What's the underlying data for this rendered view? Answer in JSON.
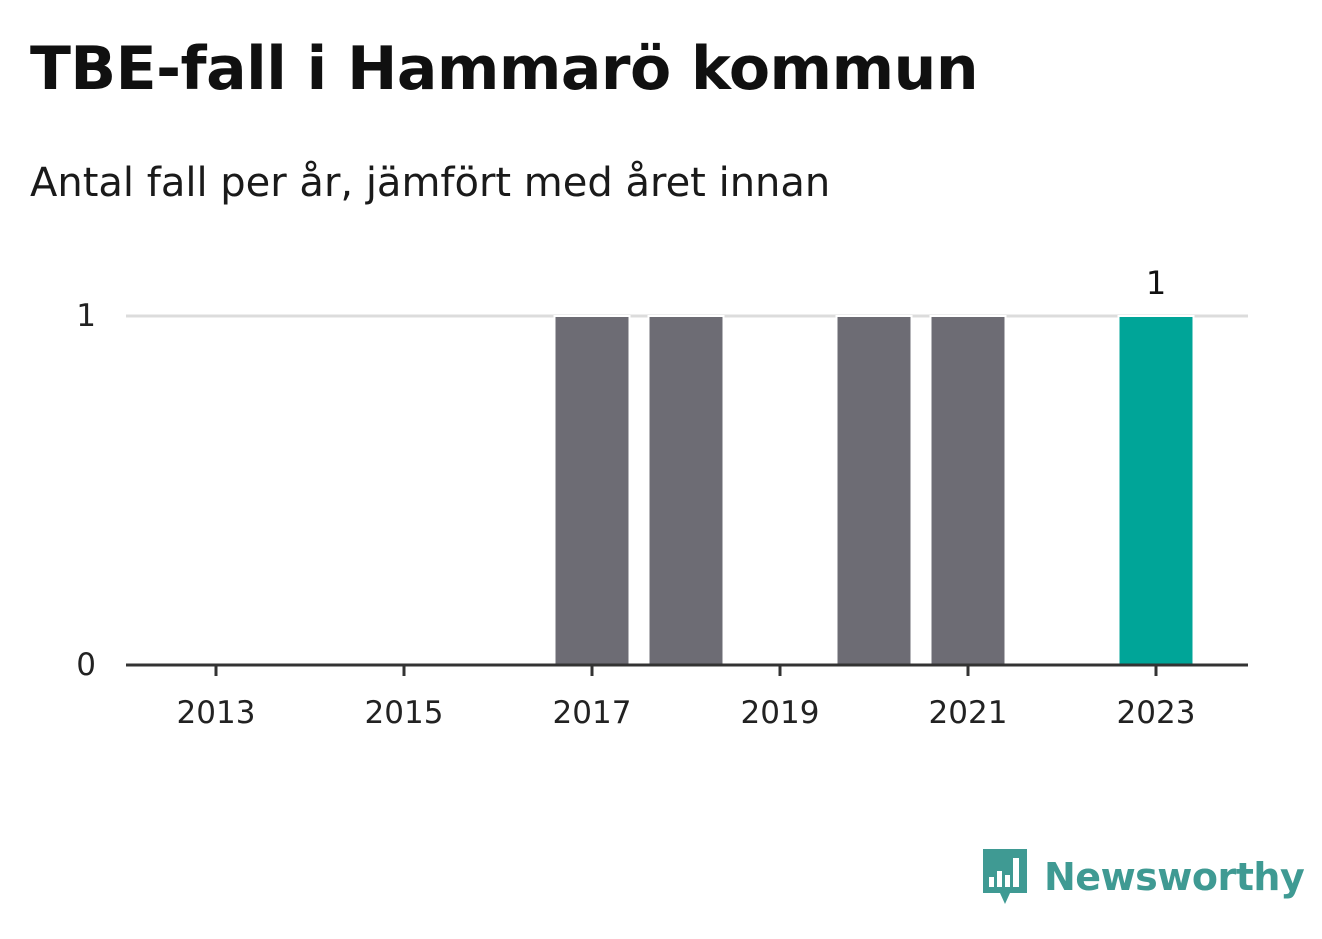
{
  "title": "TBE-fall i Hammarö kommun",
  "subtitle": "Antal fall per år, jämfört med året innan",
  "brand": {
    "name": "Newsworthy",
    "icon": "newsworthy-logo-icon"
  },
  "colors": {
    "bar": "#6d6c74",
    "highlight": "#00a598",
    "grid": "#dcdcdc",
    "axis": "#333333",
    "brand": "#3f9a93"
  },
  "chart_data": {
    "type": "bar",
    "categories": [
      "2013",
      "2014",
      "2015",
      "2016",
      "2017",
      "2018",
      "2019",
      "2020",
      "2021",
      "2022",
      "2023"
    ],
    "values": [
      0,
      0,
      0,
      0,
      1,
      1,
      0,
      1,
      1,
      0,
      1
    ],
    "highlight_category": "2023",
    "value_labels": {
      "2023": "1"
    },
    "xticks": [
      "2013",
      "2015",
      "2017",
      "2019",
      "2021",
      "2023"
    ],
    "yticks": [
      0,
      1
    ],
    "ylim": [
      0,
      1
    ],
    "grid": true,
    "legend": "none"
  }
}
